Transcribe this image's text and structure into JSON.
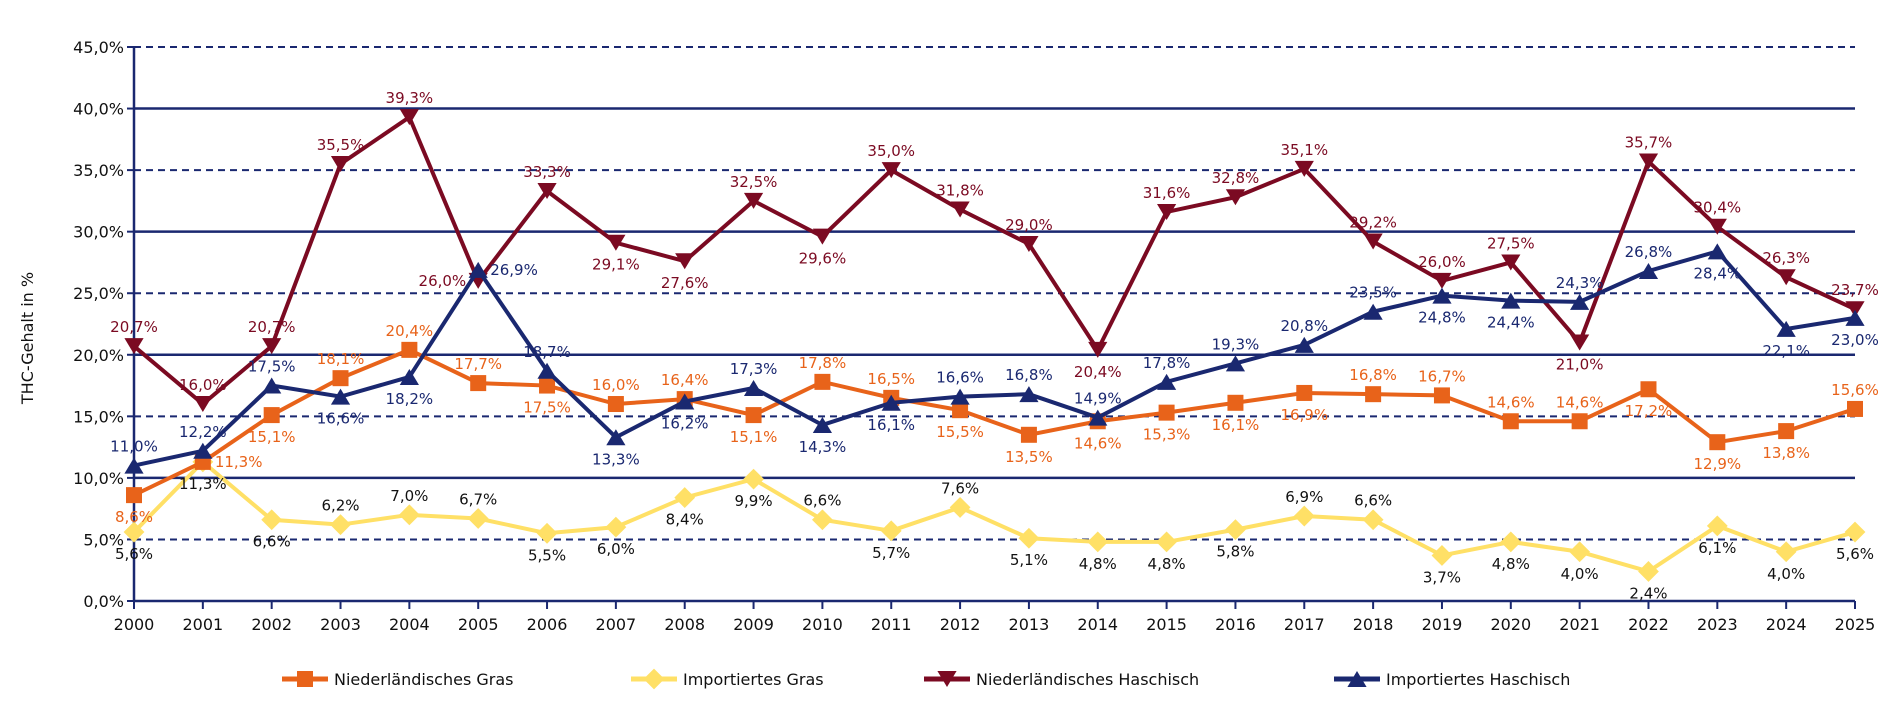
{
  "chart_data": {
    "type": "line",
    "title": "",
    "xlabel": "",
    "ylabel": "THC-Gehalt in %",
    "ylim": [
      0,
      45
    ],
    "ytick_step": 5,
    "ytick_labels": [
      "0,0%",
      "5,0%",
      "10,0%",
      "15,0%",
      "20,0%",
      "25,0%",
      "30,0%",
      "35,0%",
      "40,0%",
      "45,0%"
    ],
    "grid": "horizontal (solid at 10/20/30/40, dashed at 5/15/25/35/45)",
    "legend_position": "bottom",
    "x": [
      "2000",
      "2001",
      "2002",
      "2003",
      "2004",
      "2005",
      "2006",
      "2007",
      "2008",
      "2009",
      "2010",
      "2011",
      "2012",
      "2013",
      "2014",
      "2015",
      "2016",
      "2017",
      "2018",
      "2019",
      "2020",
      "2021",
      "2022",
      "2023",
      "2024",
      "2025"
    ],
    "series": [
      {
        "name": "Niederländisches Gras",
        "color": "#E8631A",
        "marker": "square",
        "values": [
          8.6,
          11.3,
          15.1,
          18.1,
          20.4,
          17.7,
          17.5,
          16.0,
          16.4,
          15.1,
          17.8,
          16.5,
          15.5,
          13.5,
          14.6,
          15.3,
          16.1,
          16.9,
          16.8,
          16.7,
          14.6,
          14.6,
          17.2,
          12.9,
          13.8,
          15.6
        ],
        "labels": [
          "8,6%",
          "11,3%",
          "15,1%",
          "18,1%",
          "20,4%",
          "17,7%",
          "17,5%",
          "16,0%",
          "16,4%",
          "15,1%",
          "17,8%",
          "16,5%",
          "15,5%",
          "13,5%",
          "14,6%",
          "15,3%",
          "16,1%",
          "16,9%",
          "16,8%",
          "16,7%",
          "14,6%",
          "14,6%",
          "17,2%",
          "12,9%",
          "13,8%",
          "15,6%"
        ],
        "label_side": [
          "below",
          "right",
          "below",
          "above",
          "above",
          "above",
          "below",
          "above",
          "above",
          "below",
          "above",
          "above",
          "below",
          "below",
          "below",
          "below",
          "below",
          "below",
          "above",
          "above",
          "above",
          "above",
          "below",
          "below",
          "below",
          "above"
        ]
      },
      {
        "name": "Importiertes Gras",
        "color": "#FFE066",
        "marker": "diamond",
        "values": [
          5.6,
          11.3,
          6.6,
          6.2,
          7.0,
          6.7,
          5.5,
          6.0,
          8.4,
          9.9,
          6.6,
          5.7,
          7.6,
          5.1,
          4.8,
          4.8,
          5.8,
          6.9,
          6.6,
          3.7,
          4.8,
          4.0,
          2.4,
          6.1,
          4.0,
          5.6
        ],
        "labels": [
          "5,6%",
          "11,3%",
          "6,6%",
          "6,2%",
          "7,0%",
          "6,7%",
          "5,5%",
          "6,0%",
          "8,4%",
          "9,9%",
          "6,6%",
          "5,7%",
          "7,6%",
          "5,1%",
          "4,8%",
          "4,8%",
          "5,8%",
          "6,9%",
          "6,6%",
          "3,7%",
          "4,8%",
          "4,0%",
          "2,4%",
          "6,1%",
          "4,0%",
          "5,6%"
        ],
        "label_side": [
          "below",
          "below",
          "below",
          "above",
          "above",
          "above",
          "below",
          "below",
          "below",
          "below",
          "above",
          "below",
          "above",
          "below",
          "below",
          "below",
          "below",
          "above",
          "above",
          "below",
          "below",
          "below",
          "below",
          "below",
          "below",
          "below"
        ]
      },
      {
        "name": "Niederländisches Haschisch",
        "color": "#7B0A22",
        "marker": "triangle-down",
        "values": [
          20.7,
          16.0,
          20.7,
          35.5,
          39.3,
          26.0,
          33.3,
          29.1,
          27.6,
          32.5,
          29.6,
          35.0,
          31.8,
          29.0,
          20.4,
          31.6,
          32.8,
          35.1,
          29.2,
          26.0,
          27.5,
          21.0,
          35.7,
          30.4,
          26.3,
          23.7
        ],
        "labels": [
          "20,7%",
          "16,0%",
          "20,7%",
          "35,5%",
          "39,3%",
          "26,0%",
          "33,3%",
          "29,1%",
          "27,6%",
          "32,5%",
          "29,6%",
          "35,0%",
          "31,8%",
          "29,0%",
          "20,4%",
          "31,6%",
          "32,8%",
          "35,1%",
          "29,2%",
          "26,0%",
          "27,5%",
          "21,0%",
          "35,7%",
          "30,4%",
          "26,3%",
          "23,7%"
        ],
        "label_side": [
          "above",
          "above",
          "above",
          "above",
          "above",
          "left",
          "above",
          "below",
          "below",
          "above",
          "below",
          "above",
          "above",
          "above",
          "below",
          "above",
          "above",
          "above",
          "above",
          "above",
          "above",
          "below",
          "above",
          "above",
          "above",
          "above"
        ]
      },
      {
        "name": "Importiertes Haschisch",
        "color": "#1A2870",
        "marker": "triangle-up",
        "values": [
          11.0,
          12.2,
          17.5,
          16.6,
          18.2,
          26.9,
          18.7,
          13.3,
          16.2,
          17.3,
          14.3,
          16.1,
          16.6,
          16.8,
          14.9,
          17.8,
          19.3,
          20.8,
          23.5,
          24.8,
          24.4,
          24.3,
          26.8,
          28.4,
          22.1,
          23.0
        ],
        "labels": [
          "11,0%",
          "12,2%",
          "17,5%",
          "16,6%",
          "18,2%",
          "26,9%",
          "18,7%",
          "13,3%",
          "16,2%",
          "17,3%",
          "14,3%",
          "16,1%",
          "16,6%",
          "16,8%",
          "14,9%",
          "17,8%",
          "19,3%",
          "20,8%",
          "23,5%",
          "24,8%",
          "24,4%",
          "24,3%",
          "26,8%",
          "28,4%",
          "22,1%",
          "23,0%"
        ],
        "label_side": [
          "above",
          "above",
          "above",
          "below",
          "below",
          "right",
          "above",
          "below",
          "below",
          "above",
          "below",
          "below",
          "above",
          "above",
          "above",
          "above",
          "above",
          "above",
          "above",
          "below",
          "below",
          "above",
          "above",
          "below",
          "below",
          "below"
        ]
      }
    ]
  }
}
